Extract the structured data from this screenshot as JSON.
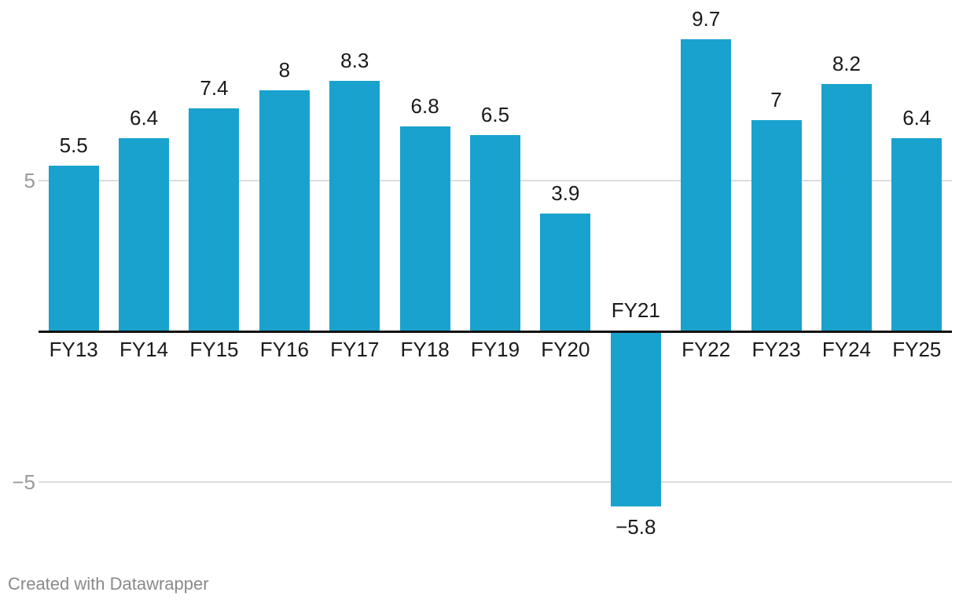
{
  "chart_data": {
    "type": "bar",
    "categories": [
      "FY13",
      "FY14",
      "FY15",
      "FY16",
      "FY17",
      "FY18",
      "FY19",
      "FY20",
      "FY21",
      "FY22",
      "FY23",
      "FY24",
      "FY25"
    ],
    "values": [
      5.5,
      6.4,
      7.4,
      8,
      8.3,
      6.8,
      6.5,
      3.9,
      -5.8,
      9.7,
      7,
      8.2,
      6.4
    ],
    "value_labels": [
      "5.5",
      "6.4",
      "7.4",
      "8",
      "8.3",
      "6.8",
      "6.5",
      "3.9",
      "−5.8",
      "9.7",
      "7",
      "8.2",
      "6.4"
    ],
    "title": "",
    "xlabel": "",
    "ylabel": "",
    "ylim": [
      -7.2,
      11
    ],
    "y_ticks": [
      {
        "value": 5,
        "label": "5"
      },
      {
        "value": -5,
        "label": "−5"
      }
    ],
    "grid": "horizontal",
    "legend": "none",
    "colors": {
      "bar": "#19a2ce",
      "label": "#1a1a1a",
      "tick_label": "#9a9a9a",
      "gridline": "#dcdcdc",
      "baseline": "#121212"
    }
  },
  "footer": {
    "attribution": "Created with Datawrapper"
  }
}
